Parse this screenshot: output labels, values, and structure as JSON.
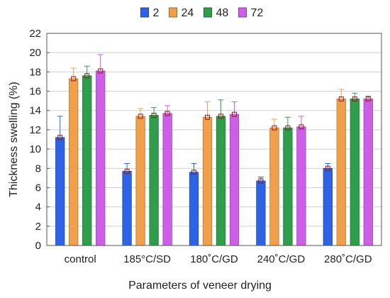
{
  "chart_data": {
    "type": "bar",
    "title": "",
    "xlabel": "Parameters of veneer drying",
    "ylabel": "Thickness swelling (%)",
    "ylim": [
      0,
      22
    ],
    "yticks": [
      0,
      2,
      4,
      6,
      8,
      10,
      12,
      14,
      16,
      18,
      20,
      22
    ],
    "grid": true,
    "legend_position": "top",
    "categories": [
      "control",
      "185°C/SD",
      "180˚C/GD",
      "240˚C/GD",
      "280˚C/GD"
    ],
    "series": [
      {
        "name": "2",
        "color": "#2f63e6",
        "values": [
          11.2,
          7.7,
          7.6,
          6.7,
          8.0
        ],
        "errors": [
          2.2,
          0.8,
          0.9,
          0.4,
          0.5
        ]
      },
      {
        "name": "24",
        "color": "#f0a04a",
        "values": [
          17.3,
          13.4,
          13.3,
          12.2,
          15.2
        ],
        "errors": [
          1.1,
          0.8,
          1.6,
          0.9,
          1.0
        ]
      },
      {
        "name": "48",
        "color": "#2e9e4a",
        "values": [
          17.6,
          13.5,
          13.4,
          12.2,
          15.2
        ],
        "errors": [
          1.0,
          0.8,
          1.7,
          1.1,
          0.6
        ]
      },
      {
        "name": "72",
        "color": "#cc5ee8",
        "values": [
          18.1,
          13.7,
          13.6,
          12.3,
          15.2
        ],
        "errors": [
          1.7,
          0.8,
          1.3,
          1.1,
          0.3
        ]
      }
    ]
  }
}
